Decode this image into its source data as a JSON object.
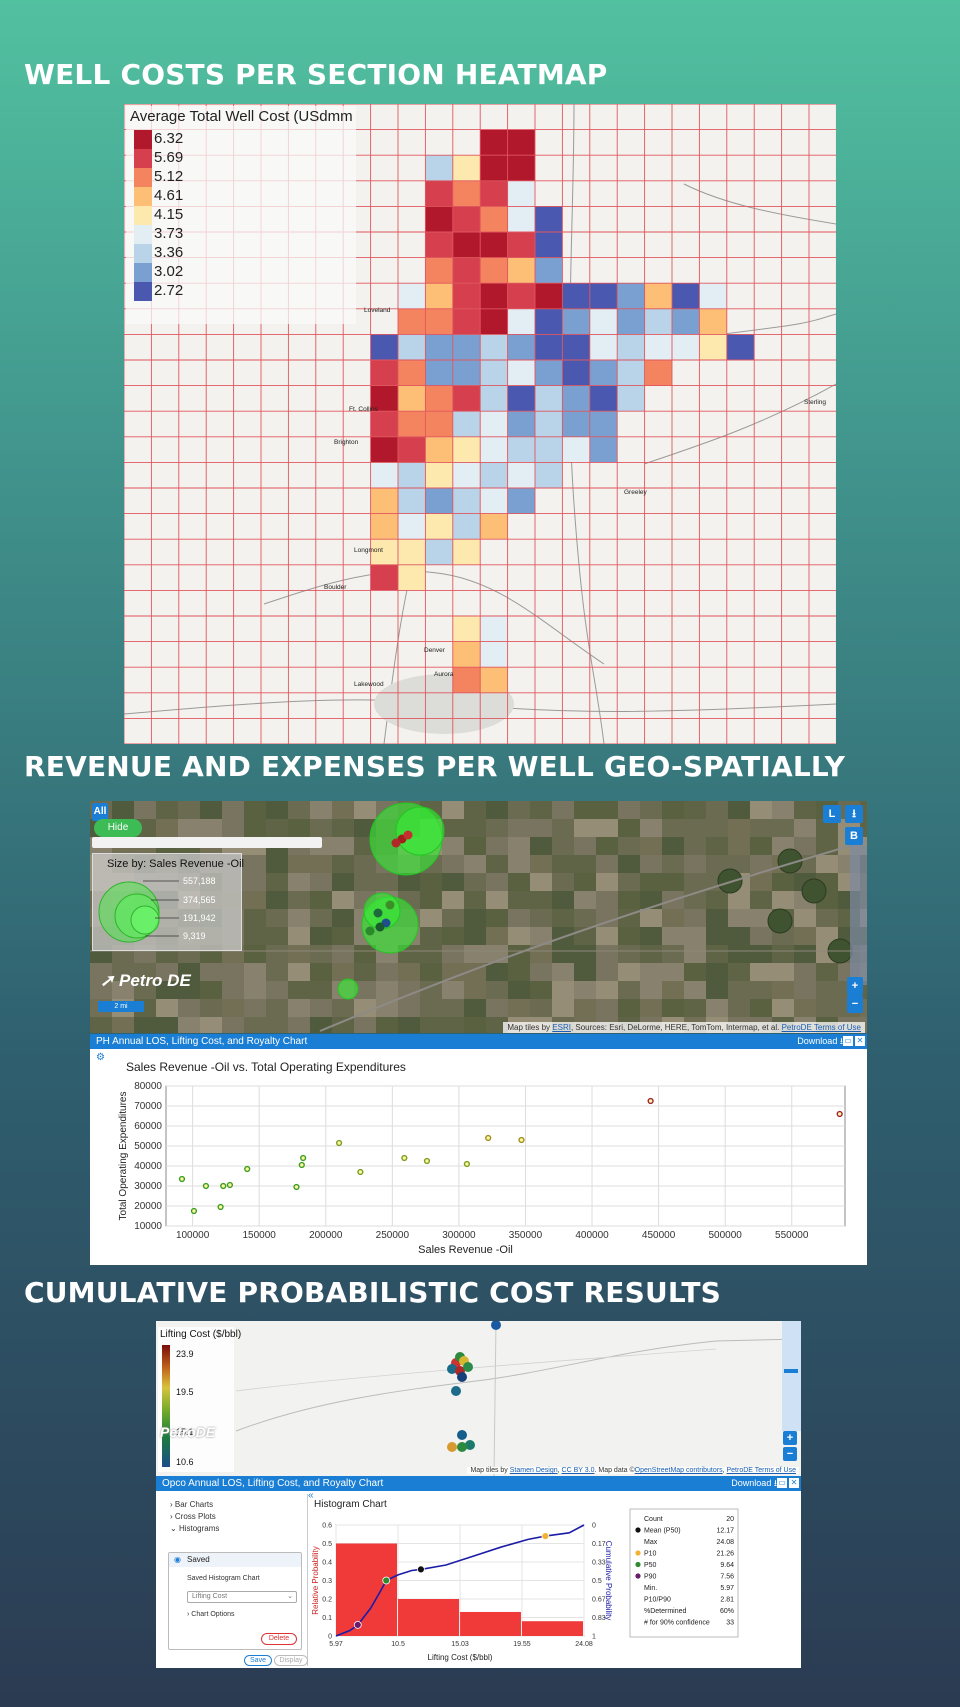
{
  "titles": {
    "heatmap": "WELL COSTS PER SECTION HEATMAP",
    "revenue": "REVENUE AND EXPENSES PER WELL GEO-SPATIALLY",
    "cumulative": "CUMULATIVE PROBABILISTIC COST RESULTS"
  },
  "heatmap": {
    "legend_title": "Average Total Well Cost (USdmm",
    "legend": [
      {
        "value": "6.32",
        "color": "#b2182b"
      },
      {
        "value": "5.69",
        "color": "#d6404e"
      },
      {
        "value": "5.12",
        "color": "#f4845f"
      },
      {
        "value": "4.61",
        "color": "#fdbe76"
      },
      {
        "value": "4.15",
        "color": "#fde8ae"
      },
      {
        "value": "3.73",
        "color": "#e3eef4"
      },
      {
        "value": "3.36",
        "color": "#b9d3e8"
      },
      {
        "value": "3.02",
        "color": "#7aa0d2"
      },
      {
        "value": "2.72",
        "color": "#4a58b0"
      }
    ],
    "city_labels": [
      "Ft. Collins",
      "Greeley",
      "Longmont",
      "Boulder",
      "Denver",
      "Aurora",
      "Lakewood",
      "Loveland",
      "Brighton",
      "Sterling"
    ]
  },
  "geo_map": {
    "all_label": "All",
    "hide_label": "Hide",
    "size_legend_title": "Size by: Sales Revenue -Oil",
    "size_values": [
      "557,188",
      "374,565",
      "191,942",
      "9,319"
    ],
    "logo": "Petro DE",
    "scale": "2 mi",
    "credits_prefix": "Map tiles by",
    "credits_link": "ESRI",
    "credits_rest": ", Sources: Esri, DeLorme, HERE, TomTom, Intermap, et al.",
    "credits_terms": "PetroDE Terms of Use",
    "buttons": {
      "l": "L",
      "b": "B",
      "zoom_in": "+",
      "zoom_out": "−",
      "download": "⭳"
    }
  },
  "scatter_panel": {
    "header": "PH Annual LOS, Lifting Cost, and Royalty Chart",
    "download": "Download"
  },
  "chart_data": [
    {
      "type": "scatter",
      "title": "Sales Revenue -Oil vs. Total Operating Expenditures",
      "xlabel": "Sales Revenue -Oil",
      "ylabel": "Total Operating Expenditures",
      "xlim": [
        80000,
        590000
      ],
      "ylim": [
        10000,
        80000
      ],
      "xticks": [
        100000,
        150000,
        200000,
        250000,
        300000,
        350000,
        400000,
        450000,
        500000,
        550000
      ],
      "yticks": [
        10000,
        20000,
        30000,
        40000,
        50000,
        60000,
        70000,
        80000
      ],
      "grid": true,
      "points": [
        {
          "x": 92000,
          "y": 33500,
          "color": "#3a9d23"
        },
        {
          "x": 101000,
          "y": 17500,
          "color": "#3a9d23"
        },
        {
          "x": 110000,
          "y": 30000,
          "color": "#3a9d23"
        },
        {
          "x": 121000,
          "y": 19500,
          "color": "#3a9d23"
        },
        {
          "x": 123000,
          "y": 30000,
          "color": "#3a9d23"
        },
        {
          "x": 128000,
          "y": 30500,
          "color": "#3a9d23"
        },
        {
          "x": 141000,
          "y": 38500,
          "color": "#3a9d23"
        },
        {
          "x": 178000,
          "y": 29500,
          "color": "#3a9d23"
        },
        {
          "x": 182000,
          "y": 40500,
          "color": "#3a9d23"
        },
        {
          "x": 183000,
          "y": 44000,
          "color": "#3a9d23"
        },
        {
          "x": 210000,
          "y": 51500,
          "color": "#7a9d23"
        },
        {
          "x": 226000,
          "y": 37000,
          "color": "#7a9d23"
        },
        {
          "x": 259000,
          "y": 44000,
          "color": "#7a9d23"
        },
        {
          "x": 276000,
          "y": 42500,
          "color": "#7a9d23"
        },
        {
          "x": 306000,
          "y": 41000,
          "color": "#7a9d23"
        },
        {
          "x": 322000,
          "y": 54000,
          "color": "#9d9023"
        },
        {
          "x": 347000,
          "y": 53000,
          "color": "#9d9023"
        },
        {
          "x": 444000,
          "y": 72500,
          "color": "#9d2336"
        },
        {
          "x": 586000,
          "y": 66000,
          "color": "#9d2336"
        }
      ]
    },
    {
      "type": "bar",
      "title": "Histogram Chart",
      "xlabel": "Lifting Cost ($/bbl)",
      "ylabel": "Relative Probability",
      "y2label": "Cumulative Probability",
      "bin_edges": [
        5.97,
        10.5,
        15.03,
        19.55,
        24.08
      ],
      "values": [
        0.5,
        0.2,
        0.13,
        0.08
      ],
      "ylim": [
        0,
        0.6
      ],
      "yticks": [
        0,
        0.1,
        0.2,
        0.3,
        0.4,
        0.5,
        0.6
      ],
      "y2ticks": [
        "0",
        "0.17",
        "0.33",
        "0.5",
        "0.67",
        "0.83",
        "1"
      ],
      "cumulative": [
        {
          "x": 5.97,
          "p": 0.0
        },
        {
          "x": 7.0,
          "p": 0.05
        },
        {
          "x": 7.56,
          "p": 0.1
        },
        {
          "x": 8.5,
          "p": 0.25
        },
        {
          "x": 9.2,
          "p": 0.4
        },
        {
          "x": 9.64,
          "p": 0.5
        },
        {
          "x": 10.5,
          "p": 0.55
        },
        {
          "x": 11.5,
          "p": 0.59
        },
        {
          "x": 12.17,
          "p": 0.6
        },
        {
          "x": 14.0,
          "p": 0.64
        },
        {
          "x": 16.0,
          "p": 0.72
        },
        {
          "x": 18.0,
          "p": 0.8
        },
        {
          "x": 20.0,
          "p": 0.87
        },
        {
          "x": 21.26,
          "p": 0.9
        },
        {
          "x": 23.0,
          "p": 0.93
        },
        {
          "x": 24.08,
          "p": 1.0
        }
      ],
      "markers": [
        {
          "name": "P90",
          "x": 7.56,
          "color": "#6a1b6a"
        },
        {
          "name": "P50",
          "x": 9.64,
          "color": "#2e8b2e"
        },
        {
          "name": "Mean (P50)",
          "x": 12.17,
          "color": "#111111"
        },
        {
          "name": "P10",
          "x": 21.26,
          "color": "#f2b233"
        }
      ]
    }
  ],
  "stats": [
    {
      "label": "Count",
      "value": "20",
      "color": ""
    },
    {
      "label": "Mean (P50)",
      "value": "12.17",
      "color": "#111111"
    },
    {
      "label": "Max",
      "value": "24.08",
      "color": ""
    },
    {
      "label": "P10",
      "value": "21.26",
      "color": "#f2b233"
    },
    {
      "label": "P50",
      "value": "9.64",
      "color": "#2e8b2e"
    },
    {
      "label": "P90",
      "value": "7.56",
      "color": "#6a1b6a"
    },
    {
      "label": "Min.",
      "value": "5.97",
      "color": ""
    },
    {
      "label": "P10/P90",
      "value": "2.81",
      "color": ""
    },
    {
      "label": "%Determined",
      "value": "60%",
      "color": ""
    },
    {
      "label": "# for 90% confidence",
      "value": "33",
      "color": ""
    }
  ],
  "prob_map": {
    "legend_title": "Lifting Cost ($/bbl)",
    "legend_values": [
      "23.9",
      "19.5",
      "15.1",
      "10.6"
    ],
    "logo": "PetroDE",
    "credits_prefix": "Map tiles by",
    "credits_link1": "Stamen Design",
    "credits_link2": "CC BY 3.0",
    "credits_mid": ". Map data ©",
    "credits_link3": "OpenStreetMap contributors",
    "credits_terms": "PetroDE Terms of Use"
  },
  "hist_panel": {
    "header": "Opco Annual LOS, Lifting Cost, and Royalty Chart",
    "download": "Download",
    "tree": [
      "Bar Charts",
      "Cross Plots",
      "Histograms"
    ],
    "saved": "Saved",
    "saved_chart": "Saved Histogram Chart",
    "select_value": "Lifting Cost",
    "chart_options": "Chart Options",
    "delete": "Delete",
    "save": "Save",
    "display": "Display"
  }
}
